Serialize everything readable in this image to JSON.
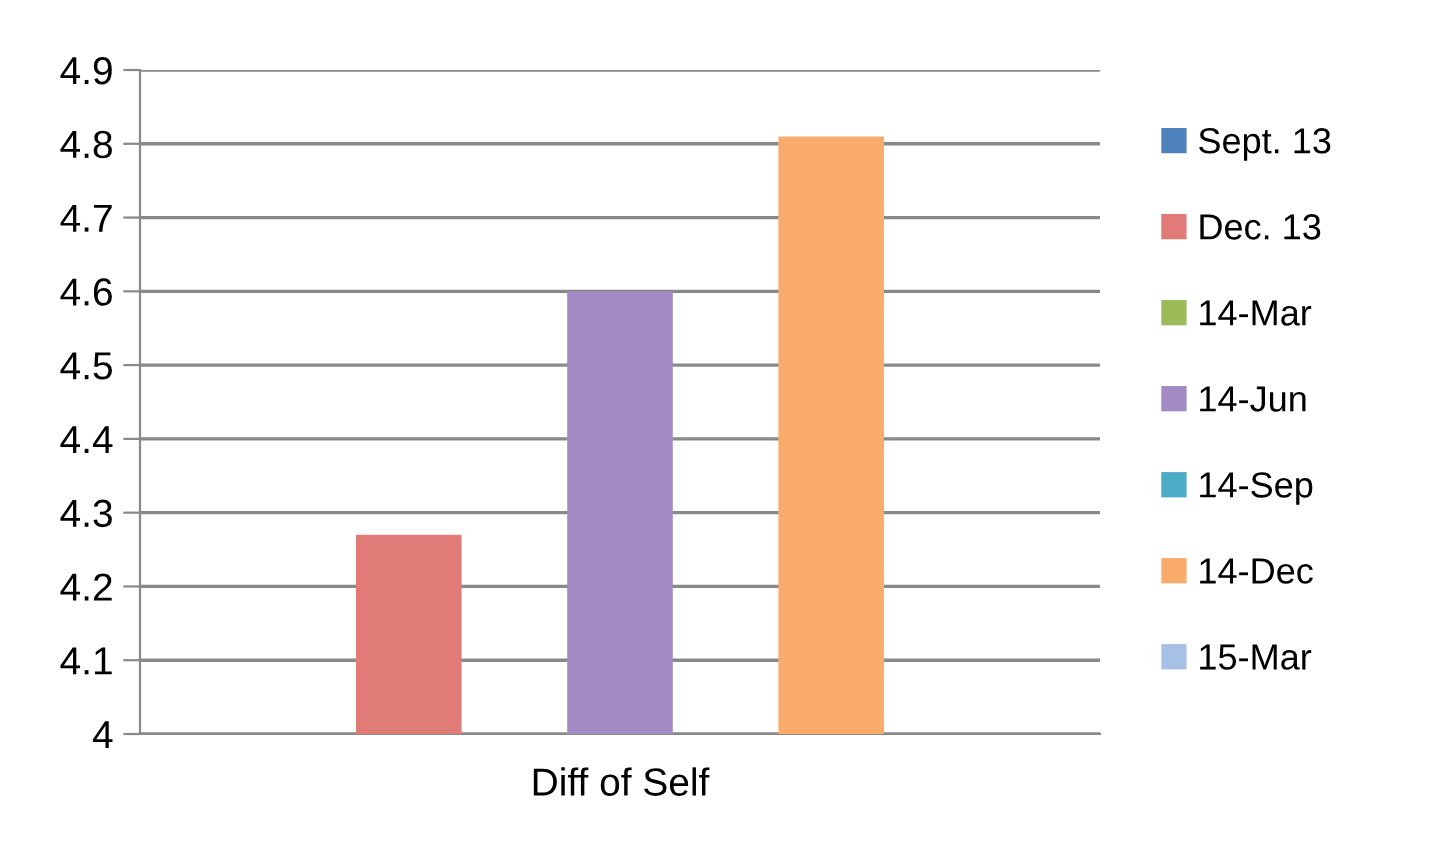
{
  "chart_data": {
    "type": "bar",
    "categories": [
      "Diff of Self"
    ],
    "ylim": [
      4,
      4.9
    ],
    "yticks": [
      4,
      4.1,
      4.2,
      4.3,
      4.4,
      4.5,
      4.6,
      4.7,
      4.8,
      4.9
    ],
    "grid": "y",
    "legend": "right",
    "series": [
      {
        "name": "Sept. 13",
        "color": "#4f81bd",
        "values": [
          null
        ]
      },
      {
        "name": "Dec. 13",
        "color": "#e07b78",
        "values": [
          4.27
        ]
      },
      {
        "name": "14-Mar",
        "color": "#9bbb59",
        "values": [
          null
        ]
      },
      {
        "name": "14-Jun",
        "color": "#a48ac4",
        "values": [
          4.6
        ]
      },
      {
        "name": "14-Sep",
        "color": "#4bacc6",
        "values": [
          null
        ]
      },
      {
        "name": "14-Dec",
        "color": "#f8ab6a",
        "values": [
          4.81
        ]
      },
      {
        "name": "15-Mar",
        "color": "#a7c0e6",
        "values": [
          null
        ]
      }
    ]
  }
}
